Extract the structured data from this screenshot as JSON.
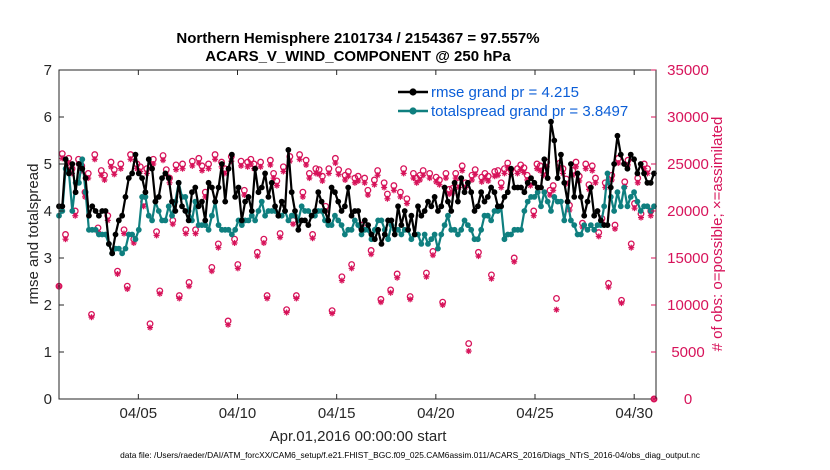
{
  "chart_data": {
    "type": "line",
    "title": [
      "Northern Hemisphere 2101734 / 2154367 = 97.557%",
      "ACARS_V_WIND_COMPONENT @ 250 hPa"
    ],
    "xlabel": "Apr.01,2016 00:00:00 start",
    "ylabel": "rmse and totalspread",
    "y2label": "# of obs: o=possible; ×=assimilated",
    "xlim": [
      1,
      31.1
    ],
    "ylim": [
      0,
      7
    ],
    "y2lim": [
      0,
      35000
    ],
    "xticks": [
      5,
      10,
      15,
      20,
      25,
      30
    ],
    "xtick_labels": [
      "04/05",
      "04/10",
      "04/15",
      "04/20",
      "04/25",
      "04/30"
    ],
    "yticks": [
      0,
      1,
      2,
      3,
      4,
      5,
      6,
      7
    ],
    "ytick_labels": [
      "0",
      "1",
      "2",
      "3",
      "4",
      "5",
      "6",
      "7"
    ],
    "y2ticks": [
      0,
      5000,
      10000,
      15000,
      20000,
      25000,
      30000,
      35000
    ],
    "y2tick_labels": [
      "0",
      "5000",
      "10000",
      "15000",
      "20000",
      "25000",
      "30000",
      "35000"
    ],
    "legend_position": "top-right",
    "footnote": "data file: /Users/raeder/DAI/ATM_forcXX/CAM6_setup/f.e21.FHIST_BGC.f09_025.CAM6assim.011/ACARS_2016/Diags_NTrS_2016-04/obs_diag_output.nc",
    "series": [
      {
        "name": "rmse",
        "legend": "rmse grand pr = 4.215",
        "color": "#000000",
        "values": [
          4.1,
          4.1,
          5.1,
          4.8,
          5.0,
          4.4,
          5.0,
          4.9,
          4.7,
          3.9,
          4.1,
          4.0,
          3.9,
          4.0,
          4.0,
          3.3,
          3.1,
          3.5,
          3.8,
          3.9,
          4.3,
          4.7,
          4.8,
          5.2,
          4.8,
          4.7,
          4.4,
          5.1,
          4.9,
          4.2,
          4.3,
          4.7,
          4.8,
          4.7,
          4.2,
          4.0,
          4.6,
          4.1,
          4.0,
          3.8,
          4.4,
          4.5,
          4.1,
          4.2,
          3.8,
          4.6,
          4.5,
          4.2,
          4.5,
          5.0,
          4.2,
          4.9,
          5.2,
          4.3,
          4.5,
          3.8,
          4.2,
          4.3,
          4.0,
          4.9,
          4.4,
          4.5,
          4.8,
          4.3,
          4.6,
          4.1,
          3.9,
          4.2,
          4.0,
          5.3,
          4.4,
          4.0,
          3.6,
          3.8,
          3.8,
          3.7,
          3.9,
          4.0,
          4.4,
          4.2,
          4.0,
          3.8,
          4.5,
          4.4,
          4.2,
          4.0,
          4.1,
          4.5,
          3.9,
          4.0,
          4.0,
          3.6,
          3.8,
          3.7,
          3.5,
          3.4,
          3.6,
          3.3,
          3.5,
          3.8,
          3.8,
          3.5,
          4.1,
          3.7,
          4.0,
          3.6,
          3.9,
          3.5,
          4.1,
          3.9,
          4.0,
          4.2,
          4.1,
          4.3,
          4.0,
          4.1,
          4.5,
          4.2,
          4.0,
          4.6,
          4.2,
          4.7,
          4.4,
          4.6,
          4.4,
          4.0,
          4.1,
          4.4,
          4.2,
          4.3,
          4.5,
          4.4,
          4.1,
          4.1,
          4.3,
          4.4,
          4.9,
          4.5,
          4.5,
          4.5,
          4.4,
          4.6,
          4.7,
          4.6,
          4.5,
          4.5,
          5.1,
          4.7,
          5.9,
          5.5,
          4.7,
          5.2,
          4.6,
          4.2,
          5.0,
          4.3,
          4.8,
          4.3,
          3.9,
          4.2,
          4.5,
          3.9,
          4.0,
          3.8,
          3.7,
          3.7,
          4.5,
          5.0,
          5.6,
          5.2,
          5.0,
          4.9,
          5.2,
          5.1,
          4.8,
          5.0,
          4.8,
          4.6,
          4.6,
          4.8
        ]
      },
      {
        "name": "totalspread",
        "legend": "totalspread grand pr = 3.8497",
        "color": "#0f7f7f",
        "values": [
          3.9,
          4.0,
          4.9,
          4.8,
          4.0,
          4.6,
          4.6,
          5.1,
          4.4,
          3.6,
          3.6,
          3.6,
          3.5,
          3.5,
          3.5,
          3.3,
          3.1,
          3.2,
          3.2,
          3.1,
          3.2,
          3.5,
          3.5,
          3.4,
          3.6,
          4.3,
          4.3,
          3.9,
          3.8,
          4.2,
          4.0,
          3.8,
          3.8,
          4.1,
          3.9,
          4.2,
          4.6,
          4.3,
          4.3,
          4.0,
          3.8,
          4.2,
          3.7,
          3.7,
          3.7,
          3.6,
          3.9,
          4.2,
          3.7,
          3.6,
          3.6,
          3.6,
          3.5,
          3.6,
          3.8,
          3.7,
          3.8,
          3.8,
          3.9,
          3.8,
          4.0,
          4.2,
          3.9,
          4.0,
          4.0,
          4.0,
          3.9,
          3.9,
          4.0,
          3.8,
          3.9,
          3.9,
          3.8,
          4.1,
          4.0,
          4.0,
          3.9,
          3.9,
          4.0,
          4.0,
          3.8,
          3.7,
          3.7,
          3.9,
          3.8,
          3.7,
          3.5,
          3.6,
          3.6,
          3.8,
          3.7,
          3.5,
          3.6,
          3.6,
          3.4,
          3.6,
          3.8,
          3.8,
          3.6,
          3.4,
          3.7,
          3.6,
          3.6,
          3.5,
          3.6,
          3.6,
          3.4,
          3.5,
          3.5,
          3.3,
          3.5,
          3.3,
          3.4,
          3.5,
          3.2,
          3.5,
          3.7,
          3.9,
          3.6,
          3.6,
          3.5,
          3.6,
          3.8,
          3.7,
          3.6,
          3.4,
          3.4,
          3.6,
          3.9,
          3.9,
          3.8,
          4.0,
          4.0,
          4.1,
          3.4,
          3.5,
          3.5,
          3.6,
          3.6,
          3.6,
          4.0,
          4.2,
          4.3,
          4.3,
          4.4,
          4.1,
          4.4,
          4.2,
          4.0,
          4.3,
          4.2,
          4.2,
          3.8,
          4.2,
          3.8,
          3.7,
          3.5,
          3.5,
          3.7,
          3.6,
          3.7,
          3.6,
          3.7,
          3.7,
          4.1,
          4.8,
          4.3,
          4.0,
          4.4,
          4.1,
          4.5,
          4.1,
          4.3,
          4.4,
          4.2,
          4.0,
          4.1,
          4.1,
          4.0,
          4.1
        ]
      }
    ],
    "obs_counts": {
      "color": "#d7135a",
      "possible": [
        12000,
        26100,
        17500,
        25600,
        24500,
        20000,
        25500,
        24800,
        22000,
        24000,
        9000,
        26000,
        18200,
        24300,
        23800,
        19500,
        25200,
        24400,
        13600,
        25000,
        18000,
        12000,
        26000,
        17000,
        25000,
        24700,
        21000,
        24500,
        8000,
        25500,
        17800,
        11500,
        25900,
        24400,
        23500,
        19000,
        24900,
        11000,
        25000,
        18000,
        12400,
        25300,
        18000,
        25600,
        24800,
        22000,
        25000,
        14000,
        26000,
        16500,
        25200,
        24500,
        8300,
        25800,
        17000,
        14300,
        25300,
        22200,
        25200,
        25500,
        25000,
        15600,
        25200,
        17000,
        11000,
        25400,
        24000,
        23200,
        17600,
        24700,
        9500,
        25800,
        19000,
        11000,
        26000,
        22000,
        25400,
        24000,
        17500,
        24500,
        24400,
        23700,
        20500,
        24500,
        9400,
        25600,
        24400,
        13000,
        23800,
        24200,
        14300,
        23500,
        23700,
        18500,
        23500,
        22200,
        15800,
        23300,
        24300,
        10600,
        23000,
        21800,
        11600,
        22700,
        13300,
        22000,
        24500,
        21300,
        10900,
        24000,
        23500,
        23800,
        24300,
        13400,
        24000,
        15700,
        23600,
        23300,
        10300,
        24000,
        22300,
        22400,
        24000,
        23000,
        24800,
        23000,
        5900,
        23800,
        24400,
        15600,
        23600,
        24000,
        23700,
        13200,
        24200,
        24300,
        23000,
        24500,
        25100,
        24400,
        15000,
        24500,
        24900,
        24600,
        23800,
        23200,
        20000,
        25000,
        24800,
        24300,
        25200,
        22200,
        22700,
        10700,
        25100,
        24500,
        23400,
        20600,
        24300,
        25200,
        23700,
        18700,
        25000,
        22800,
        24800,
        23500,
        17700,
        19200,
        23000,
        12300,
        23800,
        18500,
        25600,
        10500,
        23100,
        25400,
        16500,
        20800,
        23500,
        19700,
        25000,
        24500,
        20000,
        0
      ],
      "assimilated": [
        12000,
        25600,
        17000,
        25100,
        24000,
        19500,
        25000,
        24300,
        21500,
        23500,
        8700,
        25500,
        17800,
        23800,
        23300,
        19000,
        24700,
        23900,
        13300,
        24500,
        17600,
        11700,
        25500,
        16600,
        24500,
        24200,
        20500,
        24000,
        7600,
        25000,
        17400,
        11200,
        25400,
        23900,
        23000,
        18600,
        24400,
        10700,
        24500,
        17600,
        12000,
        24800,
        17600,
        25100,
        24300,
        21500,
        24500,
        13600,
        25500,
        16100,
        24700,
        24000,
        7900,
        25300,
        16600,
        13900,
        24800,
        21700,
        24700,
        25000,
        24500,
        15200,
        24700,
        16600,
        10700,
        24900,
        23500,
        22700,
        17200,
        24200,
        9200,
        25300,
        18600,
        10700,
        25500,
        21500,
        24900,
        23500,
        17100,
        24000,
        23900,
        23200,
        20000,
        24000,
        9100,
        25100,
        23900,
        12600,
        23300,
        23700,
        13900,
        23000,
        23200,
        18100,
        23000,
        21700,
        15400,
        22800,
        23800,
        10300,
        22500,
        21300,
        11300,
        22200,
        12900,
        21500,
        24000,
        20800,
        10600,
        23500,
        23000,
        23300,
        23800,
        13000,
        23500,
        15300,
        23100,
        22800,
        10000,
        23500,
        21800,
        21900,
        23500,
        22500,
        24300,
        22500,
        5100,
        23300,
        23900,
        15200,
        23100,
        23500,
        23200,
        12800,
        23700,
        23800,
        22500,
        24000,
        24600,
        23900,
        14600,
        24000,
        24400,
        24100,
        23300,
        22700,
        19500,
        24500,
        24300,
        23800,
        24700,
        21700,
        22200,
        9500,
        24600,
        24000,
        22900,
        20100,
        23800,
        24700,
        23200,
        18300,
        24500,
        22300,
        24300,
        23000,
        17300,
        18800,
        22500,
        11900,
        23300,
        18100,
        25100,
        10200,
        22600,
        24900,
        16100,
        20300,
        23000,
        19300,
        24500,
        24000,
        19500,
        0
      ]
    }
  }
}
